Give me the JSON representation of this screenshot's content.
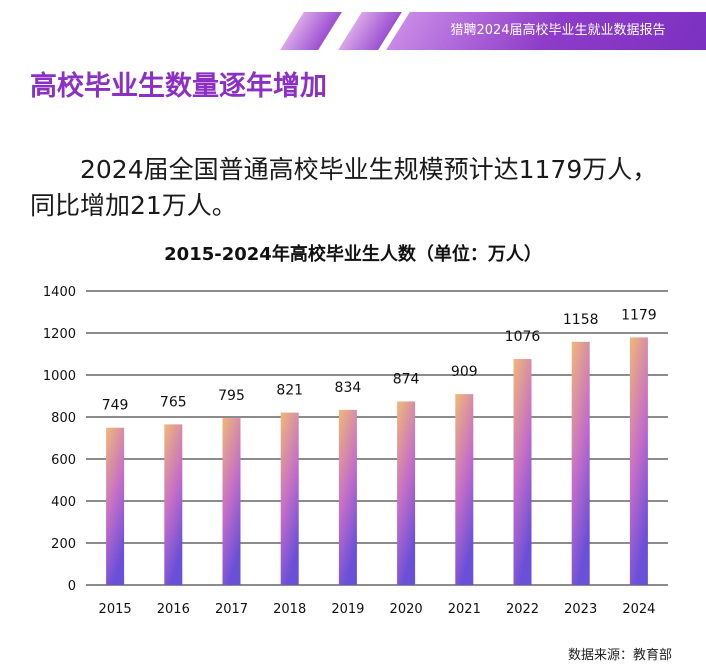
{
  "header": {
    "report_title": "猎聘2024届高校毕业生就业数据报告"
  },
  "page_title": "高校毕业生数量逐年增加",
  "summary_text": "2024届全国普通高校毕业生规模预计达1179万人，同比增加21万人。",
  "source_text": "数据来源：教育部",
  "colors": {
    "accent": "#8c2fc4",
    "bar_top": "#f0b878",
    "bar_mid": "#c46ec8",
    "bar_bottom": "#6a4fd8"
  },
  "chart_data": {
    "type": "bar",
    "title": "2015-2024年高校毕业生人数（单位：万人）",
    "xlabel": "",
    "ylabel": "",
    "categories": [
      "2015",
      "2016",
      "2017",
      "2018",
      "2019",
      "2020",
      "2021",
      "2022",
      "2023",
      "2024"
    ],
    "values": [
      749,
      765,
      795,
      821,
      834,
      874,
      909,
      1076,
      1158,
      1179
    ],
    "ylim": [
      0,
      1400
    ],
    "yticks": [
      0,
      200,
      400,
      600,
      800,
      1000,
      1200,
      1400
    ],
    "grid": true,
    "legend": "none"
  }
}
